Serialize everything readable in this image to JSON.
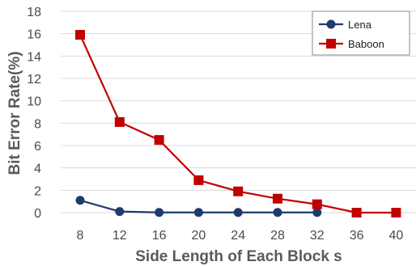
{
  "chart_data": {
    "type": "line",
    "title": "",
    "xlabel": "Side Length of Each Block s",
    "ylabel": "Bit Error Rate(%)",
    "x": [
      8,
      12,
      16,
      20,
      24,
      28,
      32,
      36,
      40
    ],
    "x_tick_labels": [
      "8",
      "12",
      "16",
      "20",
      "24",
      "28",
      "32",
      "36",
      "40"
    ],
    "ylim": [
      0,
      18
    ],
    "y_ticks": [
      0,
      2,
      4,
      6,
      8,
      10,
      12,
      14,
      16,
      18
    ],
    "y_tick_labels": [
      "0",
      "2",
      "4",
      "6",
      "8",
      "10",
      "12",
      "14",
      "16",
      "18"
    ],
    "grid": true,
    "legend_position": "top-right",
    "series": [
      {
        "name": "Lena",
        "color": "#1f3a6b",
        "marker": "circle",
        "x": [
          8,
          12,
          16,
          20,
          24,
          28,
          32
        ],
        "values": [
          1.1,
          0.1,
          0.02,
          0.02,
          0.02,
          0.02,
          0.02
        ]
      },
      {
        "name": "Baboon",
        "color": "#c00000",
        "marker": "square",
        "x": [
          8,
          12,
          16,
          20,
          24,
          28,
          32,
          36,
          40
        ],
        "values": [
          15.9,
          8.1,
          6.5,
          2.9,
          1.9,
          1.25,
          0.75,
          0.0,
          0.0
        ]
      }
    ]
  }
}
